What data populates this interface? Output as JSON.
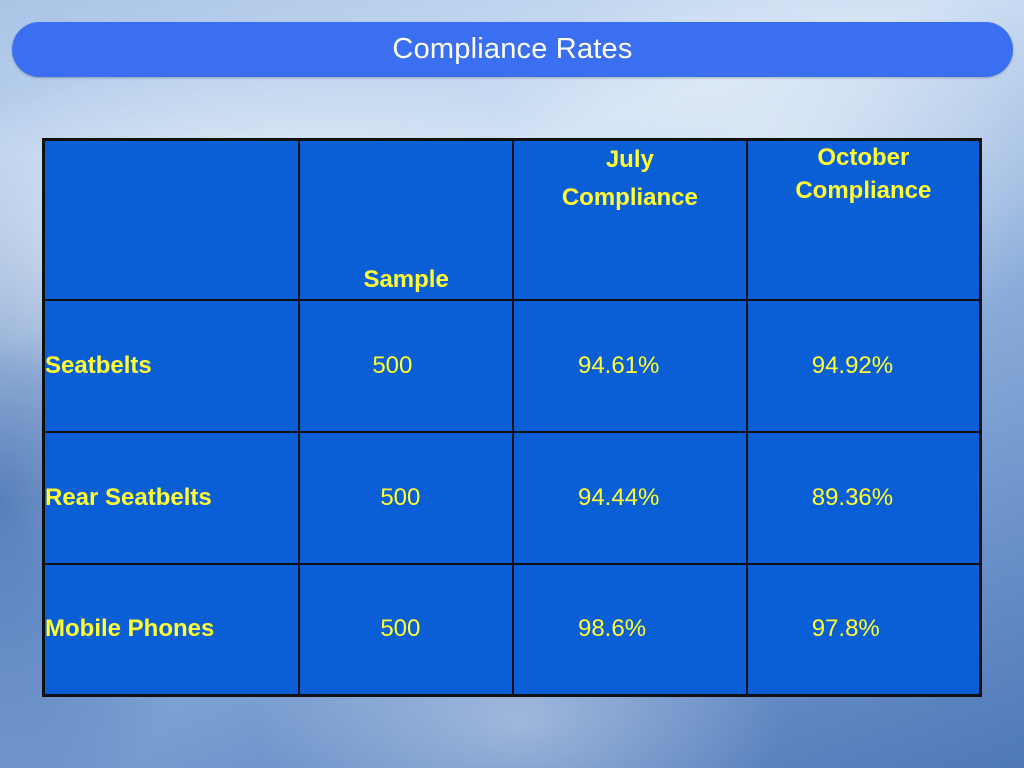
{
  "slide": {
    "title": "Compliance Rates"
  },
  "table": {
    "headers": {
      "label": "",
      "sample": "Sample",
      "july_line1": "July",
      "july_line2": "Compliance",
      "october_line1": "October",
      "october_line2": "Compliance"
    },
    "rows": [
      {
        "label": "Seatbelts",
        "sample": "500",
        "july": "94.61%",
        "october": "94.92%"
      },
      {
        "label": "Rear Seatbelts",
        "sample": "500",
        "july": "94.44%",
        "october": "89.36%"
      },
      {
        "label": "Mobile Phones",
        "sample": "500",
        "july": "98.6%",
        "october": "97.8%"
      }
    ]
  },
  "colors": {
    "title_bar": "#3b6ff2",
    "table_fill": "#0a5fd6",
    "table_text": "#ffff33",
    "border": "#111111"
  }
}
